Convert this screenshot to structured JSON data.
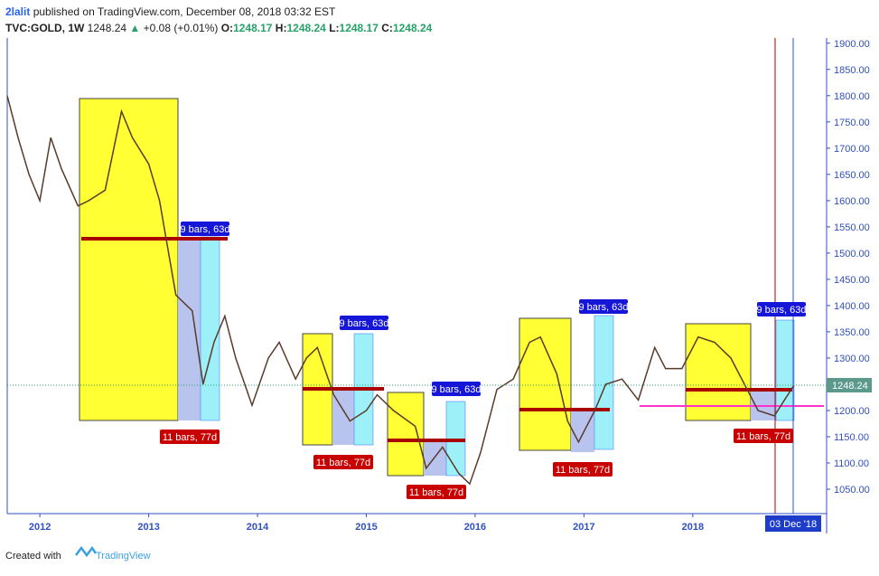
{
  "header": {
    "publisher": "2lalit",
    "published": "published on TradingView.com, December 08, 2018 03:32 EST",
    "symbol": "TVC:GOLD, 1W",
    "last": "1248.24",
    "arrow": "▲",
    "change": "+0.08 (+0.01%)",
    "ohlc": [
      [
        "O:",
        "1248.17"
      ],
      [
        "H:",
        "1248.24"
      ],
      [
        "L:",
        "1248.17"
      ],
      [
        "C:",
        "1248.24"
      ]
    ]
  },
  "footer": {
    "created": "Created with",
    "brand": "TradingView"
  },
  "chart_data": {
    "type": "line",
    "color": "#5a3a2a",
    "x": [
      2011.7,
      2011.8,
      2011.9,
      2012.0,
      2012.1,
      2012.2,
      2012.35,
      2012.45,
      2012.6,
      2012.75,
      2012.85,
      2013.0,
      2013.1,
      2013.25,
      2013.4,
      2013.5,
      2013.6,
      2013.7,
      2013.8,
      2013.95,
      2014.1,
      2014.2,
      2014.35,
      2014.45,
      2014.55,
      2014.7,
      2014.85,
      2015.0,
      2015.1,
      2015.25,
      2015.45,
      2015.55,
      2015.7,
      2015.85,
      2015.95,
      2016.05,
      2016.2,
      2016.35,
      2016.5,
      2016.6,
      2016.75,
      2016.85,
      2016.95,
      2017.1,
      2017.2,
      2017.35,
      2017.5,
      2017.65,
      2017.75,
      2017.9,
      2018.05,
      2018.2,
      2018.35,
      2018.5,
      2018.6,
      2018.75,
      2018.93
    ],
    "values": [
      1800,
      1720,
      1650,
      1600,
      1720,
      1660,
      1590,
      1600,
      1620,
      1770,
      1720,
      1670,
      1600,
      1420,
      1390,
      1250,
      1330,
      1380,
      1300,
      1210,
      1300,
      1330,
      1260,
      1300,
      1320,
      1230,
      1180,
      1200,
      1230,
      1200,
      1170,
      1090,
      1130,
      1080,
      1060,
      1120,
      1240,
      1260,
      1330,
      1340,
      1270,
      1180,
      1140,
      1200,
      1250,
      1260,
      1220,
      1320,
      1280,
      1280,
      1340,
      1330,
      1300,
      1240,
      1200,
      1190,
      1248.24
    ],
    "xlim": [
      2011.7,
      2019.23
    ],
    "xticks": [
      2012,
      2013,
      2014,
      2015,
      2016,
      2017,
      2018
    ],
    "ylim": [
      1003.5,
      1910
    ],
    "yticks": [
      {
        "value": 1050,
        "label": "1050.00"
      },
      {
        "value": 1100,
        "label": "1100.00"
      },
      {
        "value": 1150,
        "label": "1150.00"
      },
      {
        "value": 1200,
        "label": "1200.00"
      },
      {
        "value": 1250,
        "label": "1250.00"
      },
      {
        "value": 1300,
        "label": "1300.00"
      },
      {
        "value": 1350,
        "label": "1350.00"
      },
      {
        "value": 1400,
        "label": "1400.00"
      },
      {
        "value": 1450,
        "label": "1450.00"
      },
      {
        "value": 1500,
        "label": "1500.00"
      },
      {
        "value": 1550,
        "label": "1550.00"
      },
      {
        "value": 1600,
        "label": "1600.00"
      },
      {
        "value": 1650,
        "label": "1650.00"
      },
      {
        "value": 1700,
        "label": "1700.00"
      },
      {
        "value": 1750,
        "label": "1750.00"
      },
      {
        "value": 1800,
        "label": "1800.00"
      },
      {
        "value": 1850,
        "label": "1850.00"
      },
      {
        "value": 1900,
        "label": "1900.00"
      }
    ],
    "price_tag": "1248.24",
    "date_tag": "03 Dec '18",
    "blue_labels": [
      "9 bars, 63d",
      "9 bars, 63d",
      "9 bars, 63d",
      "9 bars, 63d",
      "9 bars, 63d"
    ],
    "red_labels": [
      "11 bars, 77d",
      "11 bars, 77d",
      "11 bars, 77d",
      "11 bars, 77d",
      "11 bars, 77d"
    ]
  }
}
